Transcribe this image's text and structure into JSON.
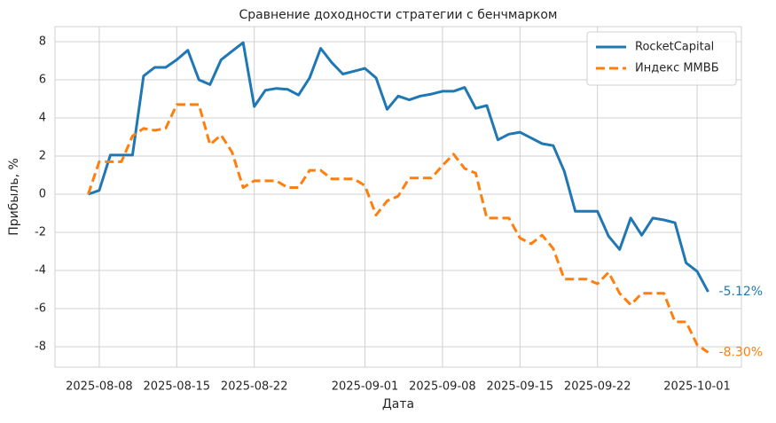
{
  "chart_data": {
    "type": "line",
    "title": "Сравнение доходности стратегии с бенчмарком",
    "xlabel": "Дата",
    "ylabel": "Прибыль, %",
    "x": [
      "2025-08-07",
      "2025-08-08",
      "2025-08-09",
      "2025-08-10",
      "2025-08-11",
      "2025-08-12",
      "2025-08-13",
      "2025-08-14",
      "2025-08-15",
      "2025-08-16",
      "2025-08-17",
      "2025-08-18",
      "2025-08-19",
      "2025-08-20",
      "2025-08-21",
      "2025-08-22",
      "2025-08-23",
      "2025-08-24",
      "2025-08-25",
      "2025-08-26",
      "2025-08-27",
      "2025-08-28",
      "2025-08-29",
      "2025-08-30",
      "2025-08-31",
      "2025-09-01",
      "2025-09-02",
      "2025-09-03",
      "2025-09-04",
      "2025-09-05",
      "2025-09-06",
      "2025-09-07",
      "2025-09-08",
      "2025-09-09",
      "2025-09-10",
      "2025-09-11",
      "2025-09-12",
      "2025-09-13",
      "2025-09-14",
      "2025-09-15",
      "2025-09-16",
      "2025-09-17",
      "2025-09-18",
      "2025-09-19",
      "2025-09-20",
      "2025-09-21",
      "2025-09-22",
      "2025-09-23",
      "2025-09-24",
      "2025-09-25",
      "2025-09-26",
      "2025-09-27",
      "2025-09-28",
      "2025-09-29",
      "2025-09-30",
      "2025-10-01",
      "2025-10-02"
    ],
    "series": [
      {
        "name": "RocketCapital",
        "color": "#1f77b4",
        "dashed": false,
        "values": [
          0,
          0.2,
          2.05,
          2.05,
          2.05,
          6.2,
          6.65,
          6.65,
          7.05,
          7.55,
          6.0,
          5.75,
          7.05,
          7.5,
          7.95,
          4.6,
          5.45,
          5.55,
          5.5,
          5.2,
          6.1,
          7.65,
          6.9,
          6.3,
          6.45,
          6.6,
          6.1,
          4.45,
          5.15,
          4.95,
          5.15,
          5.25,
          5.4,
          5.4,
          5.6,
          4.5,
          4.65,
          2.85,
          3.15,
          3.25,
          2.95,
          2.65,
          2.55,
          1.2,
          -0.9,
          -0.9,
          -0.9,
          -2.2,
          -2.9,
          -1.25,
          -2.15,
          -1.25,
          -1.35,
          -1.5,
          -3.6,
          -4.05,
          -5.12
        ]
      },
      {
        "name": "Индекс ММВБ",
        "color": "#ff7f0e",
        "dashed": true,
        "values": [
          0,
          1.7,
          1.7,
          1.7,
          3.05,
          3.45,
          3.35,
          3.45,
          4.7,
          4.7,
          4.7,
          2.6,
          3.1,
          2.2,
          0.35,
          0.7,
          0.7,
          0.7,
          0.35,
          0.35,
          1.25,
          1.25,
          0.8,
          0.8,
          0.8,
          0.45,
          -1.1,
          -0.35,
          -0.1,
          0.85,
          0.85,
          0.85,
          1.5,
          2.1,
          1.35,
          1.1,
          -1.25,
          -1.25,
          -1.25,
          -2.3,
          -2.6,
          -2.15,
          -2.85,
          -4.45,
          -4.45,
          -4.45,
          -4.7,
          -4.1,
          -5.2,
          -5.8,
          -5.2,
          -5.2,
          -5.2,
          -6.7,
          -6.7,
          -7.9,
          -8.3
        ]
      }
    ],
    "annotations": [
      {
        "text": "-5.12%",
        "color": "#1f77b4"
      },
      {
        "text": "-8.30%",
        "color": "#ff7f0e"
      }
    ],
    "xlim": [
      "2025-08-04",
      "2025-10-05"
    ],
    "xticks": [
      "2025-08-08",
      "2025-08-15",
      "2025-08-22",
      "2025-09-01",
      "2025-09-08",
      "2025-09-15",
      "2025-09-22",
      "2025-10-01"
    ],
    "ylim": [
      -9.07,
      8.79
    ],
    "yticks": [
      -8,
      -6,
      -4,
      -2,
      0,
      2,
      4,
      6,
      8
    ],
    "grid": true,
    "legend": "upper right"
  }
}
